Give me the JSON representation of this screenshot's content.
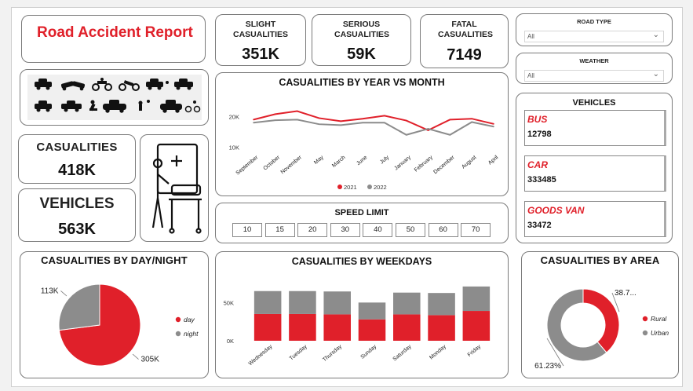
{
  "report": {
    "title": "Road Accident  Report"
  },
  "kpis": {
    "slight": {
      "label": "SLIGHT CASUALITIES",
      "value": "351K"
    },
    "serious": {
      "label": "SERIOUS CASUALITIES",
      "value": "59K"
    },
    "fatal": {
      "label": "FATAL CASUALITIES",
      "value": "7149"
    },
    "casualities": {
      "label": "CASUALITIES",
      "value": "418K"
    },
    "vehicles": {
      "label": "VEHICLES",
      "value": "563K"
    }
  },
  "filters": {
    "road_type": {
      "label": "ROAD TYPE",
      "value": "All"
    },
    "weather": {
      "label": "WEATHER",
      "value": "All"
    }
  },
  "colors": {
    "accent": "#e0202a",
    "secondary": "#8c8c8c",
    "border": "#7a7a7a"
  },
  "icons": {
    "accident_strip": "car-crash-icons",
    "medical": "hospital-patient-icon",
    "dropdown": "chevron-down-icon"
  },
  "year_month_chart": {
    "title": "CASUALITIES BY YEAR VS MONTH",
    "chart_data": {
      "type": "line",
      "categories": [
        "September",
        "October",
        "November",
        "May",
        "March",
        "June",
        "July",
        "January",
        "February",
        "December",
        "August",
        "April"
      ],
      "yticks": [
        "20K",
        "10K"
      ],
      "ylim": [
        8000,
        24000
      ],
      "series": [
        {
          "name": "2021",
          "color": "#e0202a",
          "values": [
            19000,
            20800,
            21800,
            19500,
            18500,
            19300,
            20300,
            18700,
            15500,
            19000,
            19300,
            17600
          ]
        },
        {
          "name": "2022",
          "color": "#8c8c8c",
          "values": [
            18000,
            18800,
            19000,
            17500,
            17200,
            18000,
            18000,
            14000,
            16000,
            14000,
            18200,
            16700
          ]
        }
      ],
      "legend_position": "bottom"
    }
  },
  "speed_limit": {
    "title": "SPEED LIMIT",
    "options": [
      "10",
      "15",
      "20",
      "30",
      "40",
      "50",
      "60",
      "70"
    ]
  },
  "vehicles_panel": {
    "title": "VEHICLES",
    "items": [
      {
        "name": "BUS",
        "value": "12798"
      },
      {
        "name": "CAR",
        "value": "333485"
      },
      {
        "name": "GOODS VAN",
        "value": "33472"
      }
    ]
  },
  "day_night_chart": {
    "title": "CASUALITIES BY DAY/NIGHT",
    "chart_data": {
      "type": "pie",
      "labels": [
        "day",
        "night"
      ],
      "values": [
        305000,
        113000
      ],
      "data_labels": [
        "305K",
        "113K"
      ],
      "colors": [
        "#e0202a",
        "#8c8c8c"
      ],
      "legend_position": "right"
    }
  },
  "weekdays_chart": {
    "title": "CASUALITIES BY WEEKDAYS",
    "chart_data": {
      "type": "bar",
      "stacked": true,
      "categories": [
        "Wednesday",
        "Tuesday",
        "Thursday",
        "Sunday",
        "Saturday",
        "Monday",
        "Friday"
      ],
      "yticks": [
        "50K",
        "0K"
      ],
      "ylim": [
        0,
        75000
      ],
      "series": [
        {
          "color": "#e0202a",
          "values": [
            35000,
            35000,
            34500,
            28000,
            34500,
            33500,
            39000
          ]
        },
        {
          "color": "#8c8c8c",
          "values": [
            30000,
            30000,
            30000,
            22000,
            28500,
            29000,
            32000
          ]
        }
      ]
    }
  },
  "area_chart": {
    "title": "CASUALITIES BY AREA",
    "chart_data": {
      "type": "pie",
      "donut": true,
      "labels": [
        "Rural",
        "Urban"
      ],
      "values": [
        38.77,
        61.23
      ],
      "data_labels": [
        "38.7...",
        "61.23%"
      ],
      "colors": [
        "#e0202a",
        "#8c8c8c"
      ],
      "legend_position": "right"
    }
  }
}
